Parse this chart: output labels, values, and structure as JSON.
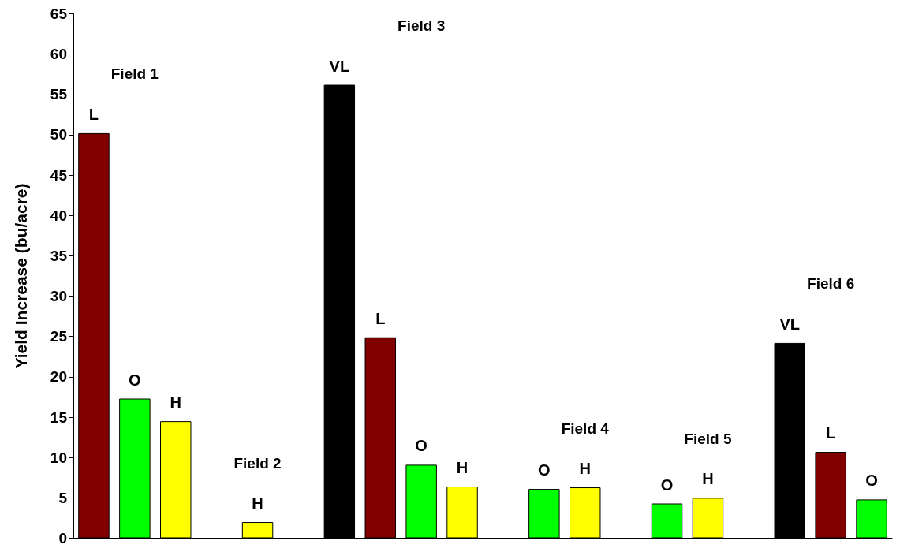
{
  "chart_data": {
    "type": "bar",
    "ylabel": "Yield Increase (bu/acre)",
    "categories": [
      null,
      null,
      null,
      null,
      null,
      null,
      null,
      null,
      null,
      null,
      null,
      null,
      null,
      null,
      null,
      null,
      null,
      null,
      null,
      null
    ],
    "series": [
      {
        "name": "VL",
        "color": "#000000",
        "values": [
          null,
          null,
          null,
          null,
          null,
          null,
          56.2,
          null,
          null,
          null,
          null,
          null,
          null,
          null,
          null,
          null,
          null,
          24.2,
          null,
          null
        ]
      },
      {
        "name": "L",
        "color": "#800000",
        "values": [
          50.2,
          null,
          null,
          null,
          null,
          null,
          null,
          24.9,
          null,
          null,
          null,
          null,
          null,
          null,
          null,
          null,
          null,
          null,
          10.7,
          null
        ]
      },
      {
        "name": "O",
        "color": "#00ff00",
        "values": [
          null,
          17.3,
          null,
          null,
          null,
          null,
          null,
          null,
          9.1,
          null,
          null,
          6.1,
          null,
          null,
          4.3,
          null,
          null,
          null,
          null,
          4.8
        ]
      },
      {
        "name": "H",
        "color": "#ffff00",
        "values": [
          null,
          null,
          14.5,
          null,
          2.0,
          null,
          null,
          null,
          null,
          6.4,
          null,
          null,
          6.3,
          null,
          null,
          5.0,
          null,
          null,
          null,
          null
        ]
      }
    ],
    "annotations": [
      "Field 1",
      "Field 2",
      "Field 3",
      "Field 4",
      "Field 5",
      "Field 6"
    ],
    "ylim": [
      0,
      65
    ],
    "yticks": [
      0,
      5,
      10,
      15,
      20,
      25,
      30,
      35,
      40,
      45,
      50,
      55,
      60,
      65
    ],
    "grid": false,
    "legend": false,
    "tick_labels": "y"
  }
}
